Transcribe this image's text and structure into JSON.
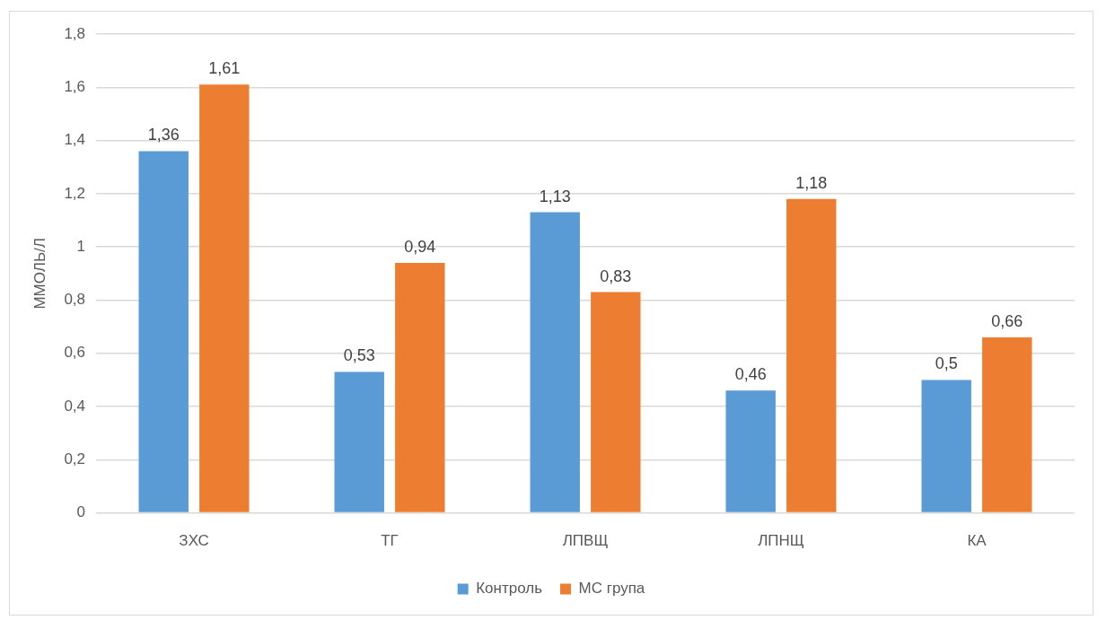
{
  "chart_data": {
    "type": "bar",
    "ylabel": "ММОЛЬ/Л",
    "categories": [
      "ЗХС",
      "ТГ",
      "ЛПВЩ",
      "ЛПНЩ",
      "КА"
    ],
    "series": [
      {
        "name": "Контроль",
        "color": "#5b9bd5",
        "values": [
          1.36,
          0.53,
          1.13,
          0.46,
          0.5
        ],
        "value_labels": [
          "1,36",
          "0,53",
          "1,13",
          "0,46",
          "0,5"
        ]
      },
      {
        "name": "МС група",
        "color": "#ed7d31",
        "values": [
          1.61,
          0.94,
          0.83,
          1.18,
          0.66
        ],
        "value_labels": [
          "1,61",
          "0,94",
          "0,83",
          "1,18",
          "0,66"
        ]
      }
    ],
    "ylim": [
      0,
      1.8
    ],
    "yticks": [
      0,
      {
        "value": 0.2,
        "label": "0,2"
      },
      {
        "value": 0.4,
        "label": "0,4"
      },
      {
        "value": 0.6,
        "label": "0,6"
      },
      {
        "value": 0.8,
        "label": "0,8"
      },
      1,
      {
        "value": 1.2,
        "label": "1,2"
      },
      {
        "value": 1.4,
        "label": "1,4"
      },
      {
        "value": 1.6,
        "label": "1,6"
      },
      {
        "value": 1.8,
        "label": "1,8"
      }
    ],
    "grid": "y",
    "legend": "bottom"
  }
}
